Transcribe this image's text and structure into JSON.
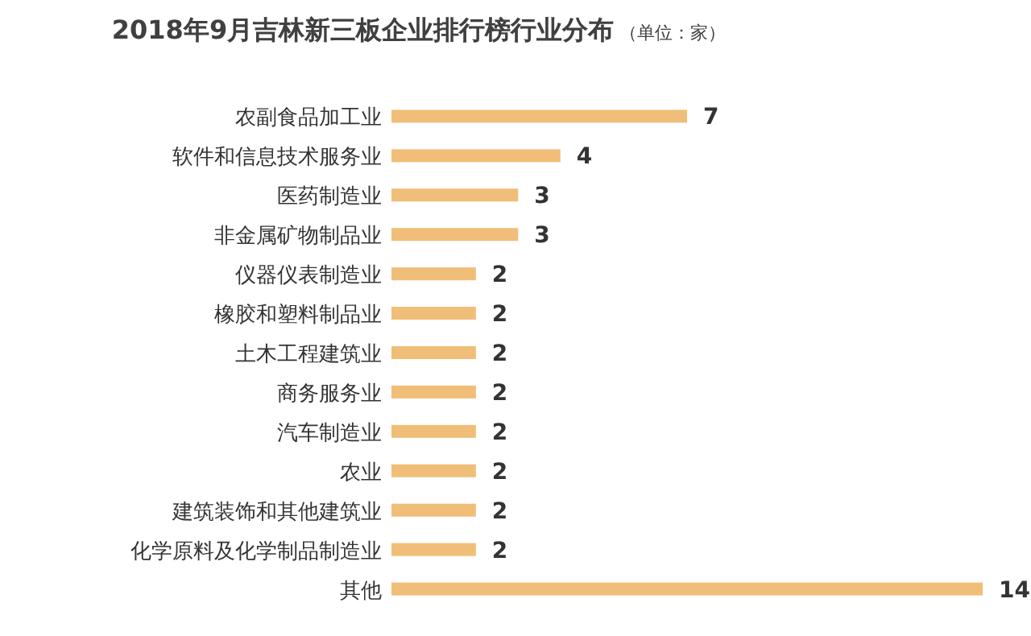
{
  "chart_data": {
    "type": "bar",
    "orientation": "horizontal",
    "title": "2018年9月吉林新三板企业排行榜行业分布",
    "subtitle": "（单位：家）",
    "categories": [
      "农副食品加工业",
      "软件和信息技术服务业",
      "医药制造业",
      "非金属矿物制品业",
      "仪器仪表制造业",
      "橡胶和塑料制品业",
      "土木工程建筑业",
      "商务服务业",
      "汽车制造业",
      "农业",
      "建筑装饰和其他建筑业",
      "化学原料及化学制品制造业",
      "其他"
    ],
    "values": [
      7,
      4,
      3,
      3,
      2,
      2,
      2,
      2,
      2,
      2,
      2,
      2,
      14
    ],
    "color": "#f0be78",
    "data_labels": true
  }
}
